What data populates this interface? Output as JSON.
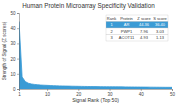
{
  "chart_data": {
    "type": "area",
    "title": "Human Protein Microarray Specificity Validation",
    "x_label": "Signal Rank (Top 50)",
    "y_label": "Strength of Signal (Z scores)",
    "x": [
      1,
      2,
      3,
      4,
      5,
      6,
      7,
      8,
      9,
      10,
      11,
      12,
      13,
      14,
      15,
      16,
      17,
      18,
      19,
      20,
      21,
      22,
      23,
      24,
      25,
      26,
      27,
      28,
      29,
      30,
      31,
      32,
      33,
      34,
      35,
      36,
      37,
      38,
      39,
      40,
      41,
      42,
      43,
      44,
      45,
      46,
      47,
      48,
      49,
      50
    ],
    "values": [
      44.36,
      7.96,
      4.93,
      3.8,
      3.3,
      3.0,
      2.8,
      2.6,
      2.5,
      2.4,
      2.3,
      2.2,
      2.1,
      2.05,
      2.0,
      1.95,
      1.9,
      1.85,
      1.8,
      1.76,
      1.72,
      1.68,
      1.65,
      1.62,
      1.6,
      1.57,
      1.55,
      1.52,
      1.5,
      1.48,
      1.46,
      1.44,
      1.42,
      1.4,
      1.38,
      1.36,
      1.34,
      1.32,
      1.3,
      1.28,
      1.26,
      1.24,
      1.22,
      1.2,
      1.18,
      1.16,
      1.14,
      1.12,
      1.1,
      1.08
    ],
    "color": "#3a9bd5",
    "xlim": [
      1,
      50
    ],
    "xticks": [
      1,
      10,
      20,
      30,
      40,
      50
    ],
    "ylim": [
      0,
      50
    ],
    "yticks": [
      0,
      10,
      20,
      30,
      40,
      50
    ],
    "grid": false,
    "table": {
      "columns": [
        "Rank",
        "Protein",
        "Z score",
        "S score"
      ],
      "rows": [
        [
          "1",
          "AR",
          "44.36",
          "36.40"
        ],
        [
          "2",
          "PWP1",
          "7.96",
          "3.03"
        ],
        [
          "3",
          "ACOT11",
          "4.93",
          "1.13"
        ]
      ]
    }
  }
}
